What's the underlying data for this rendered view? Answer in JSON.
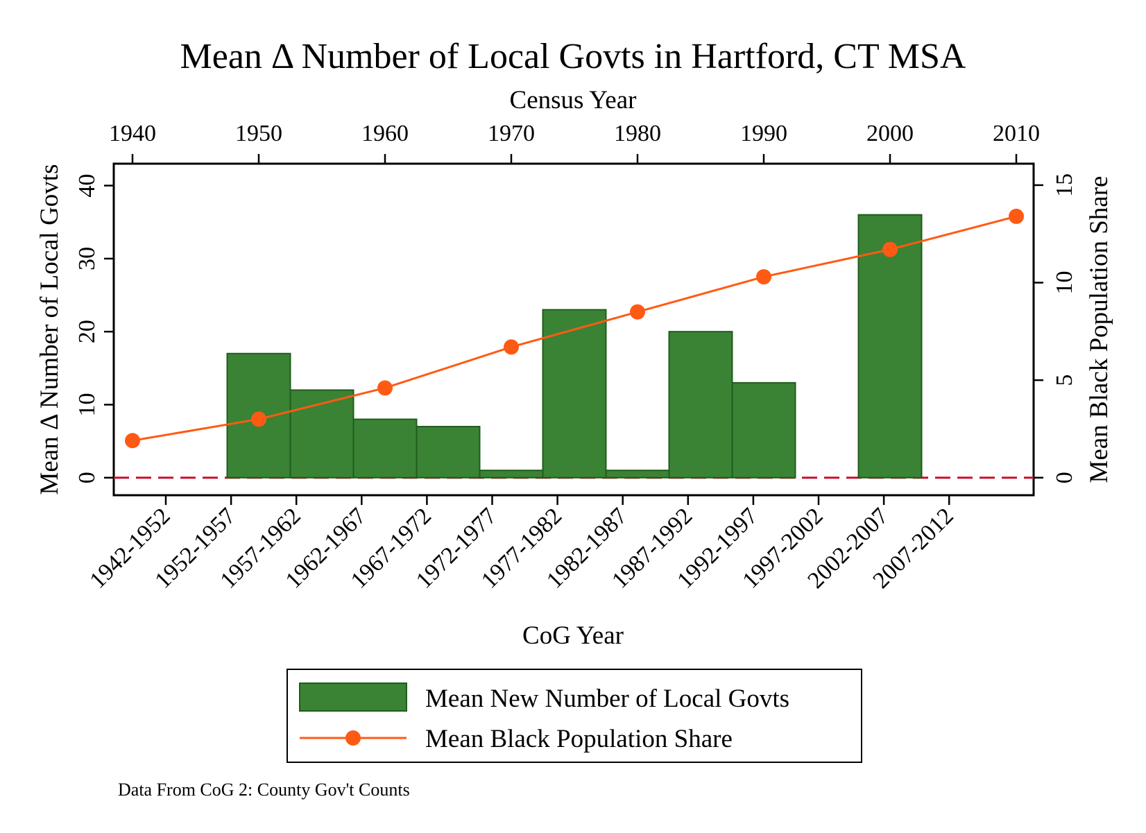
{
  "chart_data": {
    "type": "bar",
    "title": "Mean Δ Number of Local Govts in Hartford, CT MSA",
    "note": "Data From CoG 2: County Gov't Counts",
    "bars": {
      "name": "Mean New Number of Local Govts",
      "color": "#3a8335",
      "edge_color": "#1f5c1b",
      "axis": {
        "title": "CoG Year",
        "categories": [
          "1942-1952",
          "1952-1957",
          "1957-1962",
          "1962-1967",
          "1967-1972",
          "1972-1977",
          "1977-1982",
          "1982-1987",
          "1987-1992",
          "1992-1997",
          "1997-2002",
          "2002-2007",
          "2007-2012"
        ]
      },
      "values": [
        {
          "start": 1947.5,
          "end": 1952.5,
          "value": 17
        },
        {
          "start": 1952.5,
          "end": 1957.5,
          "value": 12
        },
        {
          "start": 1957.5,
          "end": 1962.5,
          "value": 8
        },
        {
          "start": 1962.5,
          "end": 1967.5,
          "value": 7
        },
        {
          "start": 1967.5,
          "end": 1972.5,
          "value": 1
        },
        {
          "start": 1972.5,
          "end": 1977.5,
          "value": 23
        },
        {
          "start": 1977.5,
          "end": 1982.5,
          "value": 1
        },
        {
          "start": 1982.5,
          "end": 1987.5,
          "value": 20
        },
        {
          "start": 1987.5,
          "end": 1992.5,
          "value": 13
        },
        {
          "start": 1997.5,
          "end": 2002.5,
          "value": 36
        }
      ]
    },
    "line": {
      "name": "Mean Black Population Share",
      "color": "#ff5a14",
      "x": [
        1940,
        1950,
        1960,
        1970,
        1980,
        1990,
        2000,
        2010
      ],
      "y": [
        1.9,
        3.0,
        4.6,
        6.7,
        8.5,
        10.3,
        11.7,
        13.4
      ]
    },
    "x_top": {
      "title": "Census Year",
      "ticks": [
        1940,
        1950,
        1960,
        1970,
        1980,
        1990,
        2000,
        2010
      ]
    },
    "y_left": {
      "title": "Mean Δ Number of Local Govts",
      "ticks": [
        0,
        10,
        20,
        30,
        40
      ],
      "range": [
        -2.4,
        43
      ]
    },
    "y_right": {
      "title": "Mean Black Population Share",
      "ticks": [
        0,
        5,
        10,
        15
      ],
      "range": [
        -0.9,
        16.1
      ]
    },
    "reference_line": {
      "y": 0,
      "color": "#c8102e",
      "style": "dashed"
    },
    "legend_position": "bottom"
  }
}
